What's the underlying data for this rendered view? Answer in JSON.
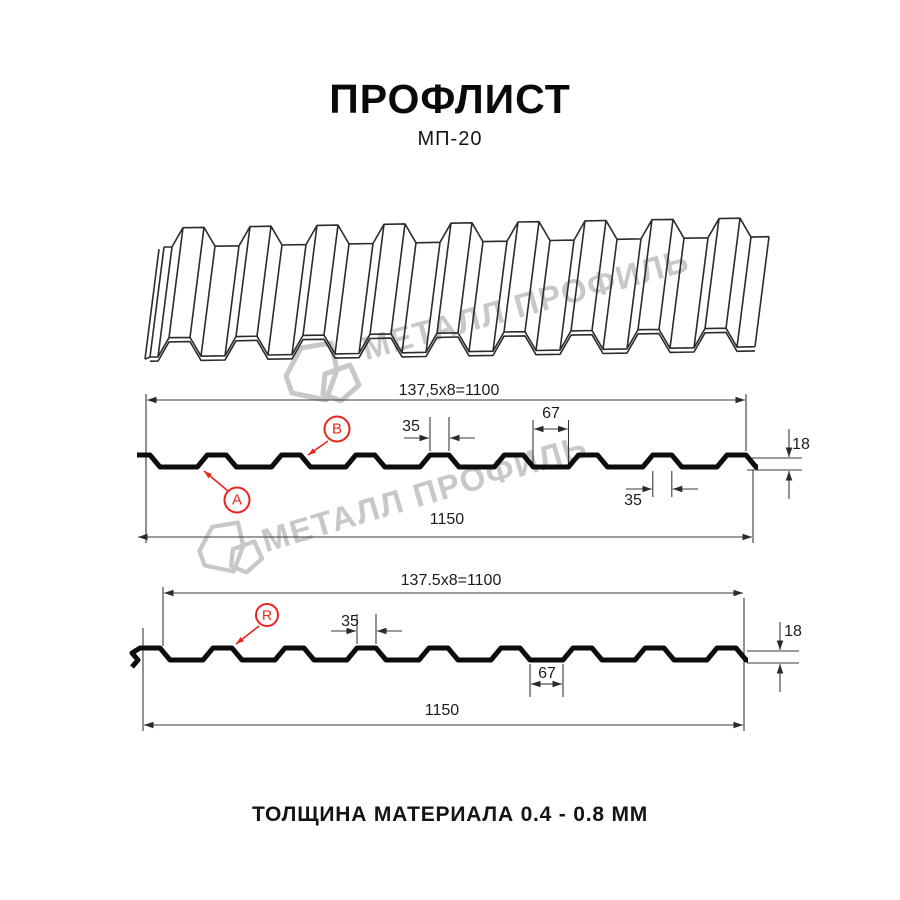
{
  "header": {
    "title": "ПРОФЛИСТ",
    "subtitle": "МП-20"
  },
  "footer": {
    "thickness_note": "ТОЛЩИНА МАТЕРИАЛА 0.4 - 0.8 ММ"
  },
  "watermark": {
    "text": "МЕТАЛЛ ПРОФИЛЬ"
  },
  "colors": {
    "accent_red": "#e8251d",
    "watermark_gray": "#c8c8c8",
    "line_black": "#1c1c1c"
  },
  "diagram_top": {
    "working_width": "137,5x8=1100",
    "overall_width": "1150",
    "rib_top_width": "35",
    "rib_bottom_width": "35",
    "valley_width": "67",
    "profile_height": "18",
    "marker_a": "A",
    "marker_b": "B"
  },
  "diagram_bottom": {
    "working_width": "137.5x8=1100",
    "overall_width": "1150",
    "rib_top_width": "35",
    "valley_width": "67",
    "profile_height": "18",
    "marker_r": "R"
  }
}
